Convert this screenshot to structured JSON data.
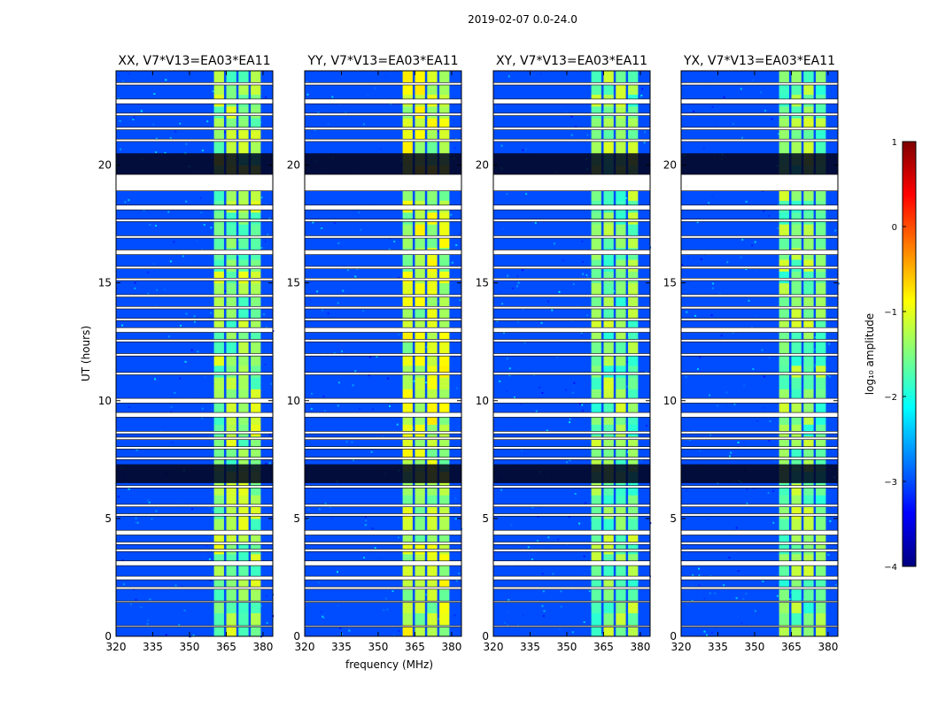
{
  "figure_title": "2019-02-07 0.0-24.0",
  "colorbar": {
    "label": "log₁₀ amplitude",
    "range": [
      -4,
      1
    ],
    "ticks": [
      "−4",
      "−3",
      "−2",
      "−1",
      "0",
      "1"
    ],
    "tick_values": [
      -4,
      -3,
      -2,
      -1,
      0,
      1
    ],
    "colors": [
      "#00007f",
      "#0000ff",
      "#007fff",
      "#00ffff",
      "#7fff7f",
      "#ffff00",
      "#ff7f00",
      "#ff0000",
      "#7f0000"
    ]
  },
  "chart_data": [
    {
      "type": "heatmap",
      "title": "XX, V7*V13=EA03*EA11",
      "xlabel": "",
      "ylabel": "UT (hours)",
      "x_ticks": [
        "320",
        "335",
        "350",
        "365",
        "380"
      ],
      "x_tick_values": [
        320,
        335,
        350,
        365,
        380
      ],
      "y_ticks": [
        "0",
        "5",
        "10",
        "15",
        "20"
      ],
      "y_tick_values": [
        0,
        5,
        10,
        15,
        20
      ],
      "xlim": [
        320,
        384
      ],
      "ylim": [
        0,
        24
      ],
      "rfi_band_mhz": [
        360,
        380
      ],
      "rfi_level_log10": -1.4,
      "background_level_log10": -3.0
    },
    {
      "type": "heatmap",
      "title": "YY, V7*V13=EA03*EA11",
      "xlabel": "frequency (MHz)",
      "ylabel": "",
      "x_ticks": [
        "320",
        "335",
        "350",
        "365",
        "380"
      ],
      "x_tick_values": [
        320,
        335,
        350,
        365,
        380
      ],
      "y_ticks": [
        "0",
        "5",
        "10",
        "15",
        "20"
      ],
      "y_tick_values": [
        0,
        5,
        10,
        15,
        20
      ],
      "xlim": [
        320,
        384
      ],
      "ylim": [
        0,
        24
      ],
      "rfi_band_mhz": [
        360,
        380
      ],
      "rfi_level_log10": -1.2,
      "background_level_log10": -3.0
    },
    {
      "type": "heatmap",
      "title": "XY, V7*V13=EA03*EA11",
      "xlabel": "",
      "ylabel": "",
      "x_ticks": [
        "320",
        "335",
        "350",
        "365",
        "380"
      ],
      "x_tick_values": [
        320,
        335,
        350,
        365,
        380
      ],
      "y_ticks": [
        "0",
        "5",
        "10",
        "15",
        "20"
      ],
      "y_tick_values": [
        0,
        5,
        10,
        15,
        20
      ],
      "xlim": [
        320,
        384
      ],
      "ylim": [
        0,
        24
      ],
      "rfi_band_mhz": [
        360,
        380
      ],
      "rfi_level_log10": -1.5,
      "background_level_log10": -3.0
    },
    {
      "type": "heatmap",
      "title": "YX, V7*V13=EA03*EA11",
      "xlabel": "",
      "ylabel": "",
      "x_ticks": [
        "320",
        "335",
        "350",
        "365",
        "380"
      ],
      "x_tick_values": [
        320,
        335,
        350,
        365,
        380
      ],
      "y_ticks": [
        "0",
        "5",
        "10",
        "15",
        "20"
      ],
      "y_tick_values": [
        0,
        5,
        10,
        15,
        20
      ],
      "xlim": [
        320,
        384
      ],
      "ylim": [
        0,
        24
      ],
      "rfi_band_mhz": [
        360,
        380
      ],
      "rfi_level_log10": -1.5,
      "background_level_log10": -3.0
    }
  ],
  "flagged_gaps_ut": [
    [
      0.4,
      0.45
    ],
    [
      1.45,
      1.5
    ],
    [
      2.0,
      2.1
    ],
    [
      2.4,
      2.55
    ],
    [
      3.0,
      3.2
    ],
    [
      3.6,
      3.7
    ],
    [
      3.9,
      4.0
    ],
    [
      4.3,
      4.5
    ],
    [
      5.1,
      5.2
    ],
    [
      5.5,
      5.6
    ],
    [
      6.3,
      6.4
    ],
    [
      7.5,
      7.6
    ],
    [
      7.95,
      8.05
    ],
    [
      8.35,
      8.45
    ],
    [
      8.6,
      8.7
    ],
    [
      9.3,
      9.5
    ],
    [
      9.9,
      10.1
    ],
    [
      11.1,
      11.2
    ],
    [
      11.9,
      12.0
    ],
    [
      12.5,
      12.6
    ],
    [
      12.9,
      13.1
    ],
    [
      13.4,
      13.5
    ],
    [
      13.9,
      14.0
    ],
    [
      14.4,
      14.5
    ],
    [
      15.1,
      15.2
    ],
    [
      15.6,
      15.7
    ],
    [
      16.2,
      16.4
    ],
    [
      16.9,
      17.0
    ],
    [
      17.6,
      17.7
    ],
    [
      18.1,
      18.3
    ],
    [
      18.9,
      19.6
    ],
    [
      21.0,
      21.1
    ],
    [
      21.5,
      21.6
    ],
    [
      22.1,
      22.2
    ],
    [
      22.6,
      22.8
    ],
    [
      23.4,
      23.5
    ]
  ],
  "dark_bands_ut": [
    [
      6.5,
      7.3
    ],
    [
      19.0,
      20.5
    ]
  ]
}
